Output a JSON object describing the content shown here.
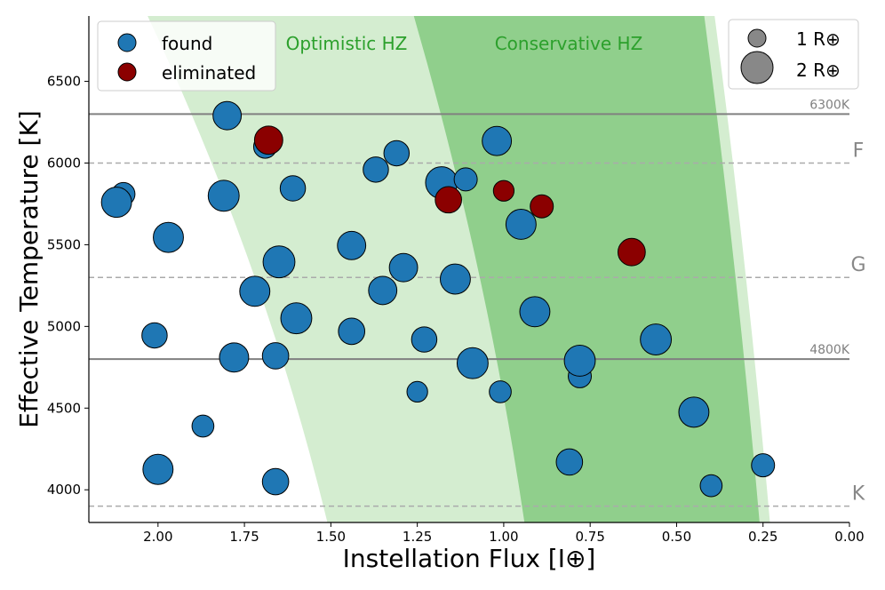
{
  "chart_data": {
    "type": "scatter",
    "xlabel": "Instellation Flux [I⊕]",
    "ylabel": "Effective Temperature [K]",
    "xlim": [
      2.2,
      0.0
    ],
    "ylim": [
      3800,
      6900
    ],
    "x_ticks": [
      2.0,
      1.75,
      1.5,
      1.25,
      1.0,
      0.75,
      0.5,
      0.25,
      0.0
    ],
    "x_tick_labels": [
      "2.00",
      "1.75",
      "1.50",
      "1.25",
      "1.00",
      "0.75",
      "0.50",
      "0.25",
      "0.00"
    ],
    "y_ticks": [
      4000,
      4500,
      5000,
      5500,
      6000,
      6500
    ],
    "y_tick_labels": [
      "4000",
      "4500",
      "5000",
      "5500",
      "6000",
      "6500"
    ],
    "zones": {
      "optimistic": {
        "label": "Optimistic HZ",
        "color": "#d4edd0",
        "inner_flux_at_ylim": [
          1.51,
          2.03
        ],
        "outer_flux_at_ylim": [
          0.23,
          0.39
        ]
      },
      "conservative": {
        "label": "Conservative HZ",
        "color": "#90cf8c",
        "inner_flux_at_ylim": [
          0.94,
          1.26
        ],
        "outer_flux_at_ylim": [
          0.26,
          0.42
        ]
      }
    },
    "reference_lines": [
      {
        "teff": 6300,
        "style": "solid",
        "label": "6300K"
      },
      {
        "teff": 4800,
        "style": "solid",
        "label": "4800K"
      },
      {
        "teff": 6000,
        "style": "dashed",
        "label": "F"
      },
      {
        "teff": 5300,
        "style": "dashed",
        "label": "G"
      },
      {
        "teff": 3900,
        "style": "dashed",
        "label": "K"
      }
    ],
    "series": [
      {
        "name": "found",
        "color": "#1f77b4",
        "points": [
          {
            "x": 2.1,
            "y": 5810,
            "r": 1.0
          },
          {
            "x": 2.12,
            "y": 5760,
            "r": 1.7
          },
          {
            "x": 1.97,
            "y": 5545,
            "r": 1.7
          },
          {
            "x": 1.8,
            "y": 6290,
            "r": 1.5
          },
          {
            "x": 1.81,
            "y": 5800,
            "r": 1.8
          },
          {
            "x": 1.69,
            "y": 6100,
            "r": 1.0
          },
          {
            "x": 1.61,
            "y": 5845,
            "r": 1.2
          },
          {
            "x": 1.72,
            "y": 5215,
            "r": 1.7
          },
          {
            "x": 1.65,
            "y": 5395,
            "r": 1.9
          },
          {
            "x": 1.6,
            "y": 5050,
            "r": 1.8
          },
          {
            "x": 2.01,
            "y": 4945,
            "r": 1.2
          },
          {
            "x": 1.78,
            "y": 4810,
            "r": 1.6
          },
          {
            "x": 1.66,
            "y": 4820,
            "r": 1.3
          },
          {
            "x": 1.87,
            "y": 4390,
            "r": 0.9
          },
          {
            "x": 2.0,
            "y": 4125,
            "r": 1.7
          },
          {
            "x": 1.66,
            "y": 4050,
            "r": 1.3
          },
          {
            "x": 1.37,
            "y": 5960,
            "r": 1.2
          },
          {
            "x": 1.31,
            "y": 6060,
            "r": 1.2
          },
          {
            "x": 1.44,
            "y": 5495,
            "r": 1.5
          },
          {
            "x": 1.29,
            "y": 5360,
            "r": 1.5
          },
          {
            "x": 1.35,
            "y": 5220,
            "r": 1.5
          },
          {
            "x": 1.44,
            "y": 4970,
            "r": 1.3
          },
          {
            "x": 1.23,
            "y": 4920,
            "r": 1.2
          },
          {
            "x": 1.25,
            "y": 4600,
            "r": 0.8
          },
          {
            "x": 1.18,
            "y": 5880,
            "r": 1.9
          },
          {
            "x": 1.11,
            "y": 5900,
            "r": 1.0
          },
          {
            "x": 1.14,
            "y": 5290,
            "r": 1.7
          },
          {
            "x": 1.09,
            "y": 4775,
            "r": 1.8
          },
          {
            "x": 1.02,
            "y": 6135,
            "r": 1.6
          },
          {
            "x": 0.95,
            "y": 5625,
            "r": 1.7
          },
          {
            "x": 0.91,
            "y": 5090,
            "r": 1.7
          },
          {
            "x": 1.01,
            "y": 4600,
            "r": 0.9
          },
          {
            "x": 0.78,
            "y": 4695,
            "r": 1.0
          },
          {
            "x": 0.78,
            "y": 4790,
            "r": 1.8
          },
          {
            "x": 0.81,
            "y": 4170,
            "r": 1.3
          },
          {
            "x": 0.56,
            "y": 4920,
            "r": 1.8
          },
          {
            "x": 0.45,
            "y": 4475,
            "r": 1.7
          },
          {
            "x": 0.4,
            "y": 4025,
            "r": 0.9
          },
          {
            "x": 0.25,
            "y": 4150,
            "r": 1.0
          }
        ]
      },
      {
        "name": "eliminated",
        "color": "#8b0000",
        "points": [
          {
            "x": 1.68,
            "y": 6140,
            "r": 1.5
          },
          {
            "x": 1.16,
            "y": 5775,
            "r": 1.3
          },
          {
            "x": 1.0,
            "y": 5830,
            "r": 0.8
          },
          {
            "x": 0.89,
            "y": 5735,
            "r": 1.0
          },
          {
            "x": 0.63,
            "y": 5455,
            "r": 1.4
          }
        ]
      }
    ],
    "size_legend": [
      {
        "label": "1 R⊕",
        "r": 1
      },
      {
        "label": "2 R⊕",
        "r": 2
      }
    ],
    "legend_position": "top-left",
    "size_legend_position": "top-right",
    "grid": false
  }
}
